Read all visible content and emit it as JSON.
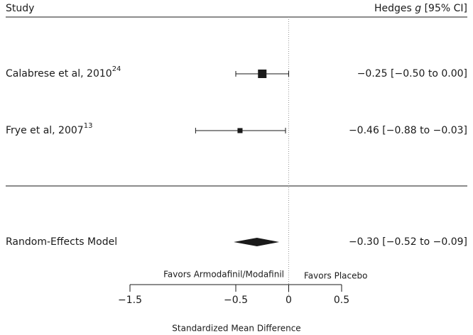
{
  "chart_data": {
    "type": "forest",
    "study_header": "Study",
    "effect_header": {
      "name": "Hedges",
      "symbol": "g",
      "interval": "[95% CI]"
    },
    "studies": [
      {
        "name": "Calabrese et al, 2010",
        "ref": "24",
        "estimate": -0.25,
        "lower": -0.5,
        "upper": 0.0,
        "label": "−0.25 [−0.50 to 0.00]"
      },
      {
        "name": "Frye et al, 2007",
        "ref": "13",
        "estimate": -0.46,
        "lower": -0.88,
        "upper": -0.03,
        "label": "−0.46 [−0.88 to −0.03]"
      }
    ],
    "summary": {
      "name": "Random-Effects Model",
      "estimate": -0.3,
      "lower": -0.52,
      "upper": -0.09,
      "label": "−0.30 [−0.52 to −0.09]"
    },
    "favors_left": "Favors Armodafinil/Modafinil",
    "favors_right": "Favors Placebo",
    "xlabel": "Standardized Mean Difference",
    "xlim": [
      -1.5,
      0.5
    ],
    "xticks": [
      {
        "value": -1.5,
        "label": "−1.5"
      },
      {
        "value": -0.5,
        "label": "−0.5"
      },
      0,
      0.5
    ],
    "color": "#1a1a1a"
  }
}
